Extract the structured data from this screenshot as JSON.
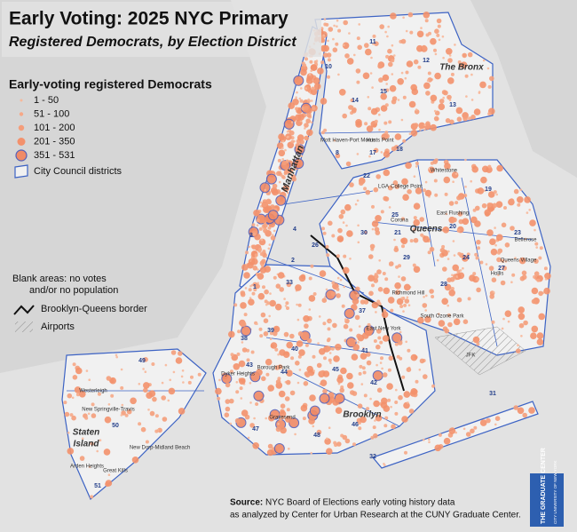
{
  "header": {
    "title": "Early Voting: 2025 NYC Primary",
    "subtitle": "Registered Democrats, by Election District"
  },
  "legend": {
    "title": "Early-voting registered Democrats",
    "items": [
      {
        "label": "1 - 50",
        "color": "#f7b89a"
      },
      {
        "label": "51 - 100",
        "color": "#f6a887"
      },
      {
        "label": "101 - 200",
        "color": "#f49d7a"
      },
      {
        "label": "201 - 350",
        "color": "#f3916c"
      },
      {
        "label": "351 - 531",
        "color": "#f08a66",
        "stroke": "#5560b8"
      }
    ],
    "districts": "City Council districts",
    "blank": [
      "Blank areas: no votes",
      "and/or no population"
    ],
    "border": "Brooklyn-Queens border",
    "airports": "Airports"
  },
  "places": {
    "boroughs": [
      "Manhattan",
      "The Bronx",
      "Queens",
      "Brooklyn",
      "Staten",
      "Island"
    ],
    "neighborhoods": [
      "Hunts Point",
      "Mott Haven-Port Morris",
      "Whitestone",
      "College Point",
      "LGA",
      "East Flushing",
      "Bellerose",
      "Queens Village",
      "Hollis",
      "Richmond Hill",
      "South Ozone Park",
      "East New York",
      "JFK",
      "Borough Park",
      "Dyker Heights",
      "Gravesend",
      "Westerleigh",
      "New Springville-Travis",
      "Great Kills",
      "Arden Heights",
      "New Dorp-Midland Beach",
      "Corona"
    ],
    "districts": [
      "1",
      "2",
      "3",
      "4",
      "8",
      "10",
      "11",
      "12",
      "13",
      "14",
      "15",
      "17",
      "18",
      "19",
      "20",
      "21",
      "22",
      "23",
      "24",
      "25",
      "26",
      "27",
      "28",
      "29",
      "30",
      "31",
      "32",
      "33",
      "37",
      "38",
      "39",
      "40",
      "41",
      "42",
      "43",
      "44",
      "45",
      "46",
      "47",
      "48",
      "49",
      "50",
      "51"
    ]
  },
  "source": {
    "label": "Source:",
    "lines": [
      "NYC Board of Elections early voting history data",
      "as analyzed by Center for Urban Research at the CUNY Graduate Center."
    ]
  },
  "logo": [
    "THE GRADUATE CENTER",
    "CITY UNIVERSITY OF NEW YORK"
  ]
}
